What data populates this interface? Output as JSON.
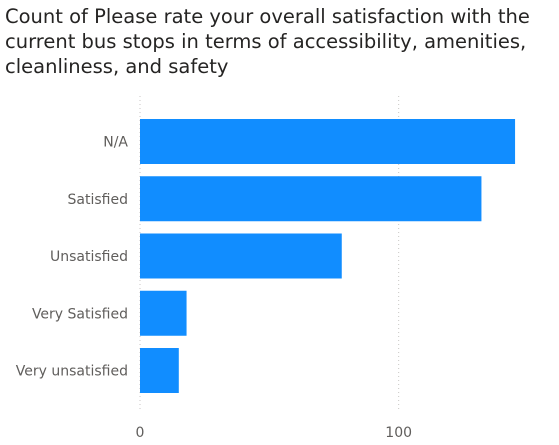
{
  "chart_data": {
    "type": "bar",
    "orientation": "horizontal",
    "title": "Count of Please rate your overall satisfaction with the current bus stops in terms of accessibility, amenities, cleanliness, and safety",
    "categories": [
      "N/A",
      "Satisfied",
      "Unsatisfied",
      "Very Satisfied",
      "Very unsatisfied"
    ],
    "values": [
      145,
      132,
      78,
      18,
      15
    ],
    "xlim": [
      0,
      150
    ],
    "xticks": [
      0,
      100
    ],
    "xlabel": "",
    "ylabel": "",
    "grid": true,
    "bar_color": "#118DFF"
  }
}
